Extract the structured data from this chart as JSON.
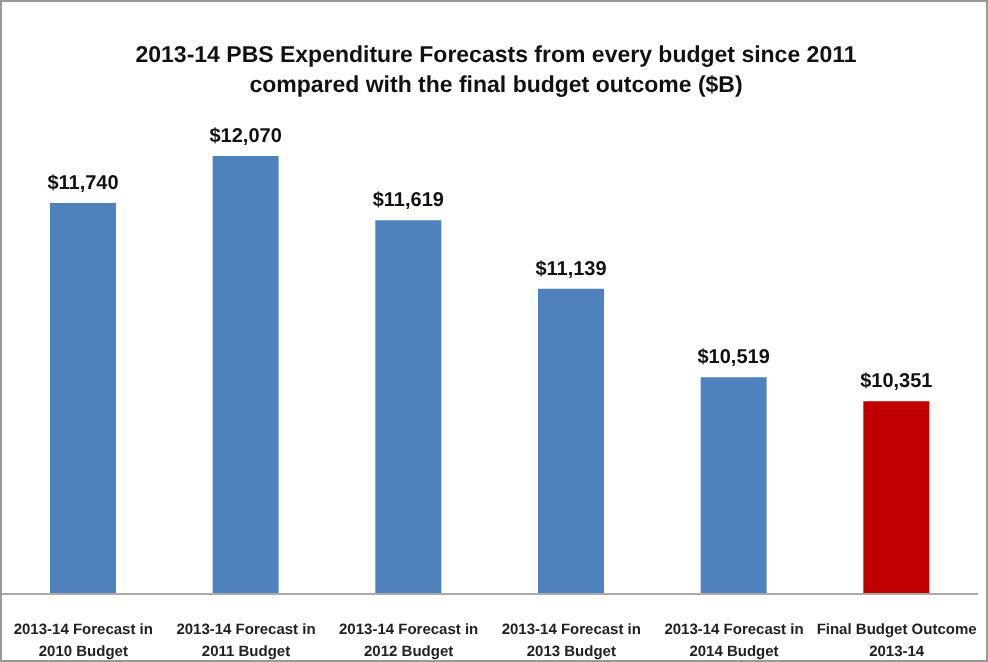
{
  "chart_data": {
    "type": "bar",
    "title": "2013-14 PBS Expenditure Forecasts from every budget since 2011 compared with the final budget outcome ($B)",
    "categories": [
      "2013-14 Forecast in 2010 Budget",
      "2013-14 Forecast in 2011 Budget",
      "2013-14 Forecast in 2012 Budget",
      "2013-14 Forecast in 2013 Budget",
      "2013-14 Forecast in 2014 Budget",
      "Final Budget Outcome 2013-14"
    ],
    "values": [
      11740,
      12070,
      11619,
      11139,
      10519,
      10351
    ],
    "value_labels": [
      "$11,740",
      "$12,070",
      "$11,619",
      "$11,139",
      "$10,519",
      "$10,351"
    ],
    "colors": [
      "#4f81bd",
      "#4f81bd",
      "#4f81bd",
      "#4f81bd",
      "#4f81bd",
      "#c00000"
    ],
    "ylim": [
      9000,
      12070
    ],
    "grid": false
  }
}
